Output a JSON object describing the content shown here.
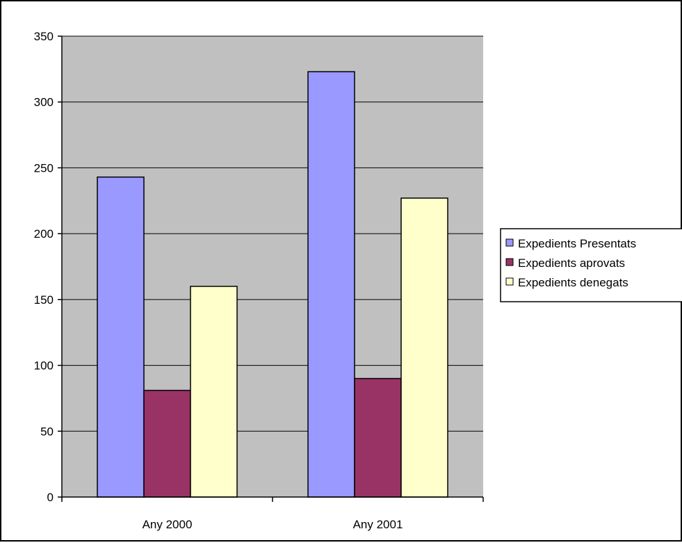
{
  "colors": {
    "plot_background": "#c0c0c0",
    "chart_border": "#000000",
    "series": [
      "#9999ff",
      "#993366",
      "#ffffcc"
    ]
  },
  "chart_data": {
    "type": "bar",
    "title": "",
    "xlabel": "",
    "ylabel": "",
    "categories": [
      "Any 2000",
      "Any 2001"
    ],
    "series": [
      {
        "name": "Expedients Presentats",
        "values": [
          243,
          323
        ]
      },
      {
        "name": "Expedients aprovats",
        "values": [
          81,
          90
        ]
      },
      {
        "name": "Expedients denegats",
        "values": [
          160,
          227
        ]
      }
    ],
    "ylim": [
      0,
      350
    ],
    "yticks": [
      0,
      50,
      100,
      150,
      200,
      250,
      300,
      350
    ],
    "grid": true,
    "legend": "right"
  }
}
